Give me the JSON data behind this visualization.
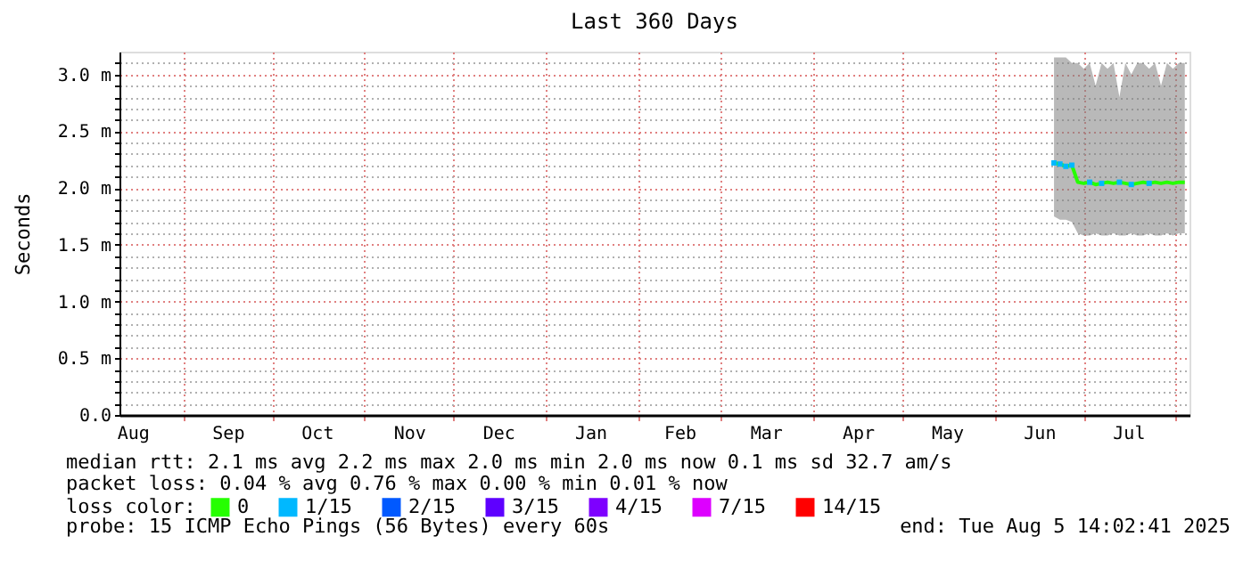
{
  "chart_data": {
    "type": "line",
    "title": "Last 360 Days",
    "ylabel": "Seconds",
    "legend_title": "loss color:",
    "legend": "bottom",
    "grid": true,
    "x": [
      "2025-06-21",
      "2025-06-23",
      "2025-06-25",
      "2025-06-27",
      "2025-06-29",
      "2025-07-01",
      "2025-07-03",
      "2025-07-05",
      "2025-07-07",
      "2025-07-09",
      "2025-07-11",
      "2025-07-13",
      "2025-07-15",
      "2025-07-17",
      "2025-07-19",
      "2025-07-21",
      "2025-07-23",
      "2025-07-25",
      "2025-07-27",
      "2025-07-29",
      "2025-07-31",
      "2025-08-02",
      "2025-08-04"
    ],
    "xlim": [
      "2024-08-10T14:00",
      "2025-08-05T14:00"
    ],
    "xticks": [
      {
        "value": "2024-08-15",
        "label": "Aug"
      },
      {
        "value": "2024-09-01",
        "label": null
      },
      {
        "value": "2024-09-16",
        "label": "Sep"
      },
      {
        "value": "2024-10-01",
        "label": null
      },
      {
        "value": "2024-10-16",
        "label": "Oct"
      },
      {
        "value": "2024-11-01",
        "label": null
      },
      {
        "value": "2024-11-16",
        "label": "Nov"
      },
      {
        "value": "2024-12-01",
        "label": null
      },
      {
        "value": "2024-12-16",
        "label": "Dec"
      },
      {
        "value": "2025-01-01",
        "label": null
      },
      {
        "value": "2025-01-16",
        "label": "Jan"
      },
      {
        "value": "2025-02-01",
        "label": null
      },
      {
        "value": "2025-02-15",
        "label": "Feb"
      },
      {
        "value": "2025-03-01",
        "label": null
      },
      {
        "value": "2025-03-16",
        "label": "Mar"
      },
      {
        "value": "2025-04-01",
        "label": null
      },
      {
        "value": "2025-04-16",
        "label": "Apr"
      },
      {
        "value": "2025-05-01",
        "label": null
      },
      {
        "value": "2025-05-16",
        "label": "May"
      },
      {
        "value": "2025-06-01",
        "label": null
      },
      {
        "value": "2025-06-16",
        "label": "Jun"
      },
      {
        "value": "2025-07-01",
        "label": null
      },
      {
        "value": "2025-07-16",
        "label": "Jul"
      },
      {
        "value": "2025-08-01",
        "label": null
      }
    ],
    "ylim": [
      0,
      3.2
    ],
    "yticks": [
      {
        "value": 0,
        "label": "0.0"
      },
      {
        "value": 0.1,
        "label": null
      },
      {
        "value": 0.2,
        "label": null
      },
      {
        "value": 0.3,
        "label": null
      },
      {
        "value": 0.4,
        "label": null
      },
      {
        "value": 0.5,
        "label": "0.5 m"
      },
      {
        "value": 0.6,
        "label": null
      },
      {
        "value": 0.7,
        "label": null
      },
      {
        "value": 0.8,
        "label": null
      },
      {
        "value": 0.9,
        "label": null
      },
      {
        "value": 1.0,
        "label": "1.0 m"
      },
      {
        "value": 1.1,
        "label": null
      },
      {
        "value": 1.2,
        "label": null
      },
      {
        "value": 1.3,
        "label": null
      },
      {
        "value": 1.4,
        "label": null
      },
      {
        "value": 1.5,
        "label": "1.5 m"
      },
      {
        "value": 1.6,
        "label": null
      },
      {
        "value": 1.7,
        "label": null
      },
      {
        "value": 1.8,
        "label": null
      },
      {
        "value": 1.9,
        "label": null
      },
      {
        "value": 2.0,
        "label": "2.0 m"
      },
      {
        "value": 2.1,
        "label": null
      },
      {
        "value": 2.2,
        "label": null
      },
      {
        "value": 2.3,
        "label": null
      },
      {
        "value": 2.4,
        "label": null
      },
      {
        "value": 2.5,
        "label": "2.5 m"
      },
      {
        "value": 2.6,
        "label": null
      },
      {
        "value": 2.7,
        "label": null
      },
      {
        "value": 2.8,
        "label": null
      },
      {
        "value": 2.9,
        "label": null
      },
      {
        "value": 3.0,
        "label": "3.0 m"
      },
      {
        "value": 3.1,
        "label": null
      }
    ],
    "series": [
      {
        "name": "0",
        "color": "#26ff00",
        "values": [
          2.22,
          2.21,
          2.19,
          2.2,
          2.05,
          2.04,
          2.05,
          2.03,
          2.04,
          2.05,
          2.04,
          2.05,
          2.04,
          2.03,
          2.04,
          2.05,
          2.04,
          2.05,
          2.04,
          2.05,
          2.04,
          2.05,
          2.05
        ],
        "lower": [
          1.75,
          1.72,
          1.72,
          1.7,
          1.6,
          1.58,
          1.58,
          1.6,
          1.58,
          1.58,
          1.6,
          1.58,
          1.58,
          1.6,
          1.58,
          1.58,
          1.6,
          1.58,
          1.58,
          1.6,
          1.58,
          1.6,
          1.6
        ],
        "upper": [
          3.15,
          3.15,
          3.15,
          3.1,
          3.1,
          3.05,
          3.1,
          2.9,
          3.1,
          3.05,
          3.1,
          2.8,
          3.1,
          3.0,
          3.1,
          3.1,
          3.05,
          3.1,
          2.9,
          3.1,
          3.05,
          3.1,
          3.1
        ]
      },
      {
        "name": "1/15",
        "color": "#00b8ff",
        "type": "scatter",
        "marker": "square",
        "values": [
          2.22,
          2.21,
          2.19,
          2.2,
          null,
          null,
          2.05,
          null,
          2.04,
          null,
          null,
          2.05,
          null,
          2.03,
          null,
          null,
          2.04,
          null,
          null,
          null,
          null,
          null,
          null
        ]
      },
      {
        "name": "2/15",
        "color": "#0059ff",
        "type": "scatter",
        "marker": "square",
        "values": [
          null,
          null,
          null,
          null,
          null,
          null,
          null,
          null,
          null,
          null,
          null,
          null,
          null,
          null,
          null,
          null,
          null,
          null,
          null,
          null,
          null,
          null,
          null
        ]
      },
      {
        "name": "3/15",
        "color": "#5e00ff",
        "type": "scatter",
        "marker": "square",
        "values": [
          null,
          null,
          null,
          null,
          null,
          null,
          null,
          null,
          null,
          null,
          null,
          null,
          null,
          null,
          null,
          null,
          null,
          null,
          null,
          null,
          null,
          null,
          null
        ]
      },
      {
        "name": "4/15",
        "color": "#7e00ff",
        "type": "scatter",
        "marker": "square",
        "values": [
          null,
          null,
          null,
          null,
          null,
          null,
          null,
          null,
          null,
          null,
          null,
          null,
          null,
          null,
          null,
          null,
          null,
          null,
          null,
          null,
          null,
          null,
          null
        ]
      },
      {
        "name": "7/15",
        "color": "#dd00ff",
        "type": "scatter",
        "marker": "square",
        "values": [
          null,
          null,
          null,
          null,
          null,
          null,
          null,
          null,
          null,
          null,
          null,
          null,
          null,
          null,
          null,
          null,
          null,
          null,
          null,
          null,
          null,
          null,
          null
        ]
      },
      {
        "name": "14/15",
        "color": "#ff0000",
        "type": "scatter",
        "marker": "square",
        "values": [
          null,
          null,
          null,
          null,
          null,
          null,
          null,
          null,
          null,
          null,
          null,
          null,
          null,
          null,
          null,
          null,
          null,
          null,
          null,
          null,
          null,
          null,
          null
        ]
      }
    ],
    "annotations": [
      "median rtt:  2.1 ms avg  2.2 ms max  2.0 ms min  2.0 ms now  0.1 ms sd  32.7   am/s",
      "packet loss: 0.04 % avg  0.76 % max  0.00 % min  0.01 % now",
      "probe:       15 ICMP Echo Pings (56 Bytes) every 60s",
      "end: Tue Aug  5 14:02:41 2025"
    ]
  }
}
